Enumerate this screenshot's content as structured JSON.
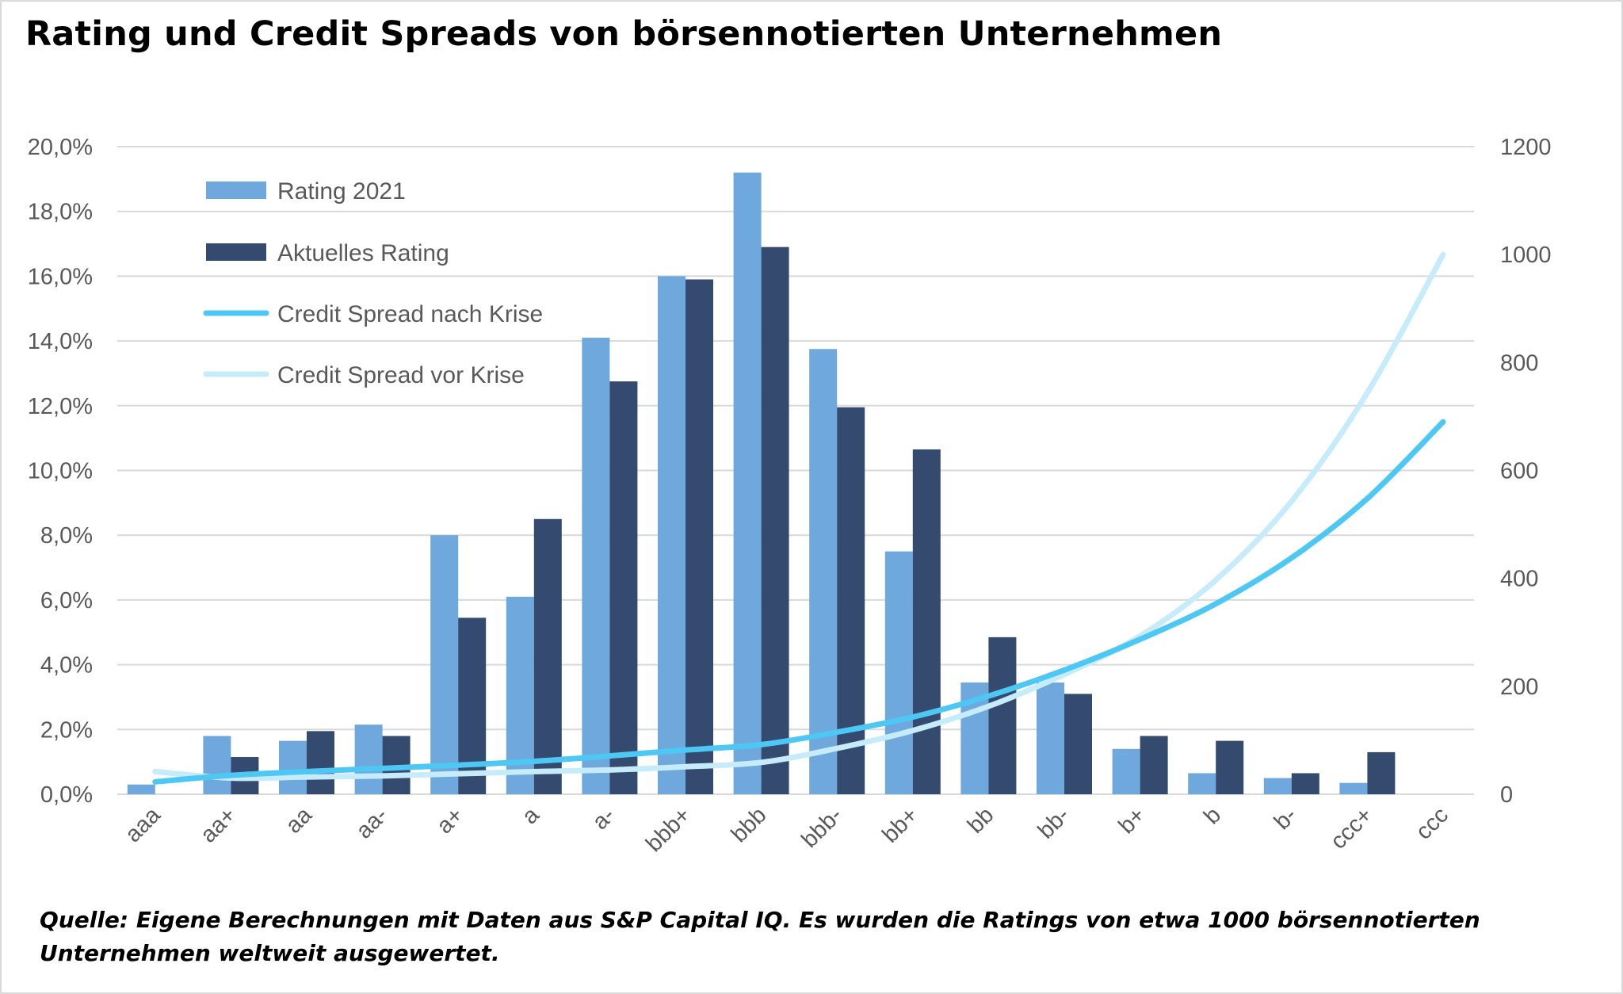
{
  "title": "Rating und Credit Spreads von börsennotierten Unternehmen",
  "source_note": "Quelle: Eigene Berechnungen mit Daten aus S&P Capital IQ. Es wurden die Ratings von etwa 1000 börsennotierten Unternehmen weltweit ausgewertet.",
  "colors": {
    "rating_2021": "#6fa8dc",
    "aktuelles_rating": "#344a6f",
    "spread_nach_krise": "#4dc8f5",
    "spread_vor_krise": "#c6ecfb",
    "grid": "#d9d9d9",
    "tick_text": "#595959"
  },
  "chart_data": {
    "type": "bar",
    "categories": [
      "aaa",
      "aa+",
      "aa",
      "aa-",
      "a+",
      "a",
      "a-",
      "bbb+",
      "bbb",
      "bbb-",
      "bb+",
      "bb",
      "bb-",
      "b+",
      "b",
      "b-",
      "ccc+",
      "ccc"
    ],
    "series": [
      {
        "name": "Rating 2021",
        "type": "bar",
        "axis": "left",
        "color": "#6fa8dc",
        "values": [
          0.3,
          1.8,
          1.65,
          2.15,
          8.0,
          6.1,
          14.1,
          16.0,
          19.2,
          13.75,
          7.5,
          3.45,
          3.45,
          1.4,
          0.65,
          0.5,
          0.35,
          0.0
        ]
      },
      {
        "name": "Aktuelles Rating",
        "type": "bar",
        "axis": "left",
        "color": "#344a6f",
        "values": [
          0.0,
          1.15,
          1.95,
          1.8,
          5.45,
          8.5,
          12.75,
          15.9,
          16.9,
          11.95,
          10.65,
          4.85,
          3.1,
          1.8,
          1.65,
          0.65,
          1.3,
          0.0
        ]
      },
      {
        "name": "Credit Spread nach Krise",
        "type": "line",
        "axis": "right",
        "color": "#4dc8f5",
        "values": [
          23,
          35,
          42,
          48,
          54,
          61,
          71,
          82,
          92,
          115,
          143,
          182,
          230,
          287,
          353,
          438,
          548,
          690
        ]
      },
      {
        "name": "Credit Spread vor Krise",
        "type": "line",
        "axis": "right",
        "color": "#c6ecfb",
        "values": [
          42,
          30,
          32,
          34,
          38,
          42,
          45,
          51,
          59,
          85,
          118,
          163,
          222,
          293,
          397,
          543,
          744,
          1000
        ]
      }
    ],
    "y_left": {
      "ticks": [
        "0,0%",
        "2,0%",
        "4,0%",
        "6,0%",
        "8,0%",
        "10,0%",
        "12,0%",
        "14,0%",
        "16,0%",
        "18,0%",
        "20,0%"
      ],
      "min": 0,
      "max": 20
    },
    "y_right": {
      "ticks": [
        "0",
        "200",
        "400",
        "600",
        "800",
        "1000",
        "1200"
      ],
      "min": 0,
      "max": 1200
    },
    "grid": true,
    "legend_position": "top-left"
  }
}
